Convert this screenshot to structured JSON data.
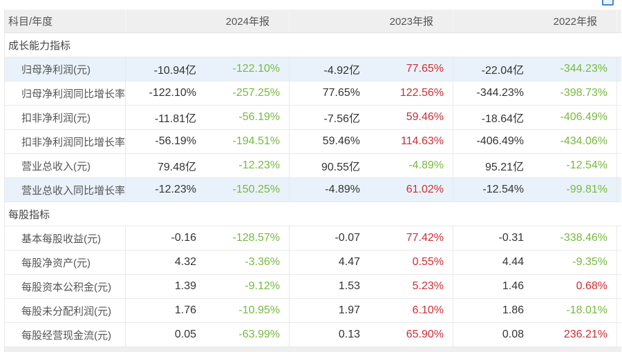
{
  "window": {
    "corner_icon_color": "#3f87c9"
  },
  "colors": {
    "up_red": "#cc2d32",
    "down_green": "#76b93c",
    "highlight_row_bg": "#e9f2fa",
    "header_bg": "#efefef"
  },
  "table": {
    "header": {
      "label": "科目/年度",
      "years": [
        "2024年报",
        "2023年报",
        "2022年报"
      ]
    },
    "sections": [
      {
        "title": "成长能力指标",
        "rows": [
          {
            "label": "归母净利润(元)",
            "highlighted": true,
            "cells": [
              {
                "value": "-10.94亿",
                "pct": "-122.10%",
                "trend": "down"
              },
              {
                "value": "-4.92亿",
                "pct": "77.65%",
                "trend": "up"
              },
              {
                "value": "-22.04亿",
                "pct": "-344.23%",
                "trend": "down"
              }
            ]
          },
          {
            "label": "归母净利润同比增长率",
            "highlighted": false,
            "cells": [
              {
                "value": "-122.10%",
                "pct": "-257.25%",
                "trend": "down"
              },
              {
                "value": "77.65%",
                "pct": "122.56%",
                "trend": "up"
              },
              {
                "value": "-344.23%",
                "pct": "-398.73%",
                "trend": "down"
              }
            ]
          },
          {
            "label": "扣非净利润(元)",
            "highlighted": false,
            "cells": [
              {
                "value": "-11.81亿",
                "pct": "-56.19%",
                "trend": "down"
              },
              {
                "value": "-7.56亿",
                "pct": "59.46%",
                "trend": "up"
              },
              {
                "value": "-18.64亿",
                "pct": "-406.49%",
                "trend": "down"
              }
            ]
          },
          {
            "label": "扣非净利润同比增长率",
            "highlighted": false,
            "cells": [
              {
                "value": "-56.19%",
                "pct": "-194.51%",
                "trend": "down"
              },
              {
                "value": "59.46%",
                "pct": "114.63%",
                "trend": "up"
              },
              {
                "value": "-406.49%",
                "pct": "-434.06%",
                "trend": "down"
              }
            ]
          },
          {
            "label": "营业总收入(元)",
            "highlighted": false,
            "cells": [
              {
                "value": "79.48亿",
                "pct": "-12.23%",
                "trend": "down"
              },
              {
                "value": "90.55亿",
                "pct": "-4.89%",
                "trend": "down"
              },
              {
                "value": "95.21亿",
                "pct": "-12.54%",
                "trend": "down"
              }
            ]
          },
          {
            "label": "营业总收入同比增长率",
            "highlighted": true,
            "cells": [
              {
                "value": "-12.23%",
                "pct": "-150.25%",
                "trend": "down"
              },
              {
                "value": "-4.89%",
                "pct": "61.02%",
                "trend": "up"
              },
              {
                "value": "-12.54%",
                "pct": "-99.81%",
                "trend": "down"
              }
            ]
          }
        ]
      },
      {
        "title": "每股指标",
        "rows": [
          {
            "label": "基本每股收益(元)",
            "highlighted": false,
            "cells": [
              {
                "value": "-0.16",
                "pct": "-128.57%",
                "trend": "down"
              },
              {
                "value": "-0.07",
                "pct": "77.42%",
                "trend": "up"
              },
              {
                "value": "-0.31",
                "pct": "-338.46%",
                "trend": "down"
              }
            ]
          },
          {
            "label": "每股净资产(元)",
            "highlighted": false,
            "cells": [
              {
                "value": "4.32",
                "pct": "-3.36%",
                "trend": "down"
              },
              {
                "value": "4.47",
                "pct": "0.55%",
                "trend": "up"
              },
              {
                "value": "4.44",
                "pct": "-9.35%",
                "trend": "down"
              }
            ]
          },
          {
            "label": "每股资本公积金(元)",
            "highlighted": false,
            "cells": [
              {
                "value": "1.39",
                "pct": "-9.12%",
                "trend": "down"
              },
              {
                "value": "1.53",
                "pct": "5.23%",
                "trend": "up"
              },
              {
                "value": "1.46",
                "pct": "0.68%",
                "trend": "up"
              }
            ]
          },
          {
            "label": "每股未分配利润(元)",
            "highlighted": false,
            "cells": [
              {
                "value": "1.76",
                "pct": "-10.95%",
                "trend": "down"
              },
              {
                "value": "1.97",
                "pct": "6.10%",
                "trend": "up"
              },
              {
                "value": "1.86",
                "pct": "-18.01%",
                "trend": "down"
              }
            ]
          },
          {
            "label": "每股经营现金流(元)",
            "highlighted": false,
            "cells": [
              {
                "value": "0.05",
                "pct": "-63.99%",
                "trend": "down"
              },
              {
                "value": "0.13",
                "pct": "65.90%",
                "trend": "up"
              },
              {
                "value": "0.08",
                "pct": "236.21%",
                "trend": "up"
              }
            ]
          }
        ]
      }
    ]
  }
}
